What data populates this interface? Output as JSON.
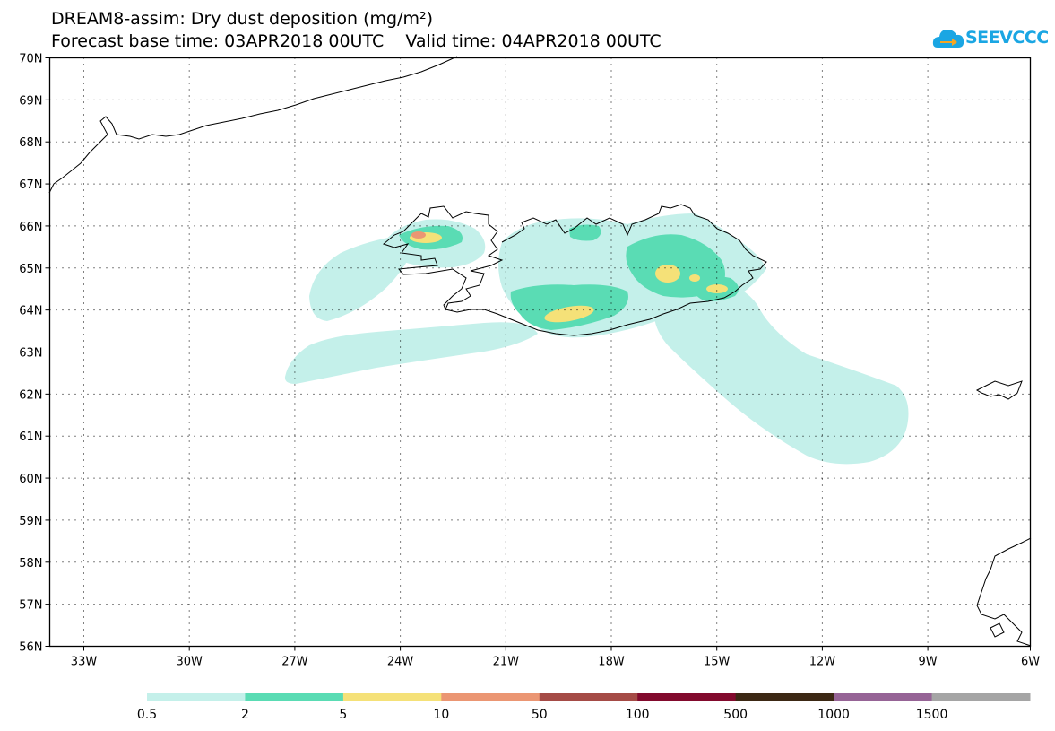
{
  "header": {
    "title": "DREAM8-assim: Dry dust deposition (mg/m²)",
    "subtitle": "Forecast base time: 03APR2018 00UTC    Valid time: 04APR2018 00UTC"
  },
  "logo": {
    "text": "SEEVCCC",
    "icon": "cloud-arrow-icon",
    "color": "#1aa6e3"
  },
  "axes": {
    "lat_labels": [
      "70N",
      "69N",
      "68N",
      "67N",
      "66N",
      "65N",
      "64N",
      "63N",
      "62N",
      "61N",
      "60N",
      "59N",
      "58N",
      "57N",
      "56N"
    ],
    "lon_labels": [
      "33W",
      "30W",
      "27W",
      "24W",
      "21W",
      "18W",
      "15W",
      "12W",
      "9W",
      "6W"
    ]
  },
  "colorbar": {
    "labels": [
      "0.5",
      "2",
      "5",
      "10",
      "50",
      "100",
      "500",
      "1000",
      "1500"
    ],
    "colors": [
      "#c4f0ea",
      "#5adcb4",
      "#f5e178",
      "#eb9673",
      "#a54b46",
      "#820a2d",
      "#3c2814",
      "#966496",
      "#a5a5a5"
    ]
  }
}
